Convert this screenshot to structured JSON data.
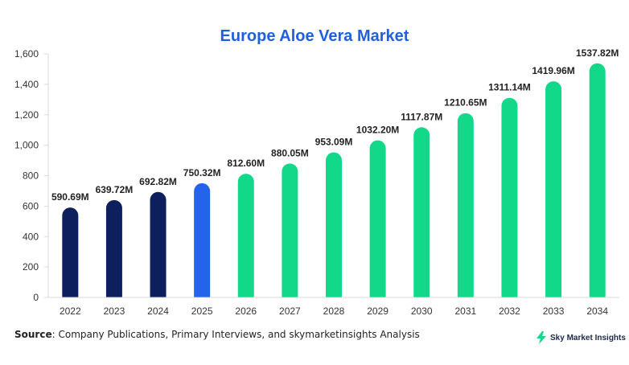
{
  "chart_data": {
    "type": "bar",
    "title": "Europe Aloe Vera Market",
    "categories": [
      "2022",
      "2023",
      "2024",
      "2025",
      "2026",
      "2027",
      "2028",
      "2029",
      "2030",
      "2031",
      "2032",
      "2033",
      "2034"
    ],
    "values": [
      590.69,
      639.72,
      692.82,
      750.32,
      812.6,
      880.05,
      953.09,
      1032.2,
      1117.87,
      1210.65,
      1311.14,
      1419.96,
      1537.82
    ],
    "data_labels": [
      "590.69M",
      "639.72M",
      "692.82M",
      "750.32M",
      "812.60M",
      "880.05M",
      "953.09M",
      "1032.20M",
      "1117.87M",
      "1210.65M",
      "1311.14M",
      "1419.96M",
      "1537.82M"
    ],
    "bar_colors": [
      "#0d1f5c",
      "#0d1f5c",
      "#0d1f5c",
      "#2563eb",
      "#12d98a",
      "#12d98a",
      "#12d98a",
      "#12d98a",
      "#12d98a",
      "#12d98a",
      "#12d98a",
      "#12d98a",
      "#12d98a"
    ],
    "yticks": [
      0,
      200,
      400,
      600,
      800,
      1000,
      1200,
      1400,
      1600
    ],
    "ytick_labels": [
      "0",
      "200",
      "400",
      "600",
      "800",
      "1,000",
      "1,200",
      "1,400",
      "1,600"
    ],
    "ylim": [
      0,
      1600
    ],
    "xlabel": "",
    "ylabel": "",
    "grid": false,
    "legend": false
  },
  "footer": {
    "source_label": "Source",
    "source_text": ": Company Publications, Primary Interviews, and skymarketinsights Analysis",
    "brand_name": "Sky Market Insights",
    "brand_icon": "lightning-bolt-icon"
  }
}
